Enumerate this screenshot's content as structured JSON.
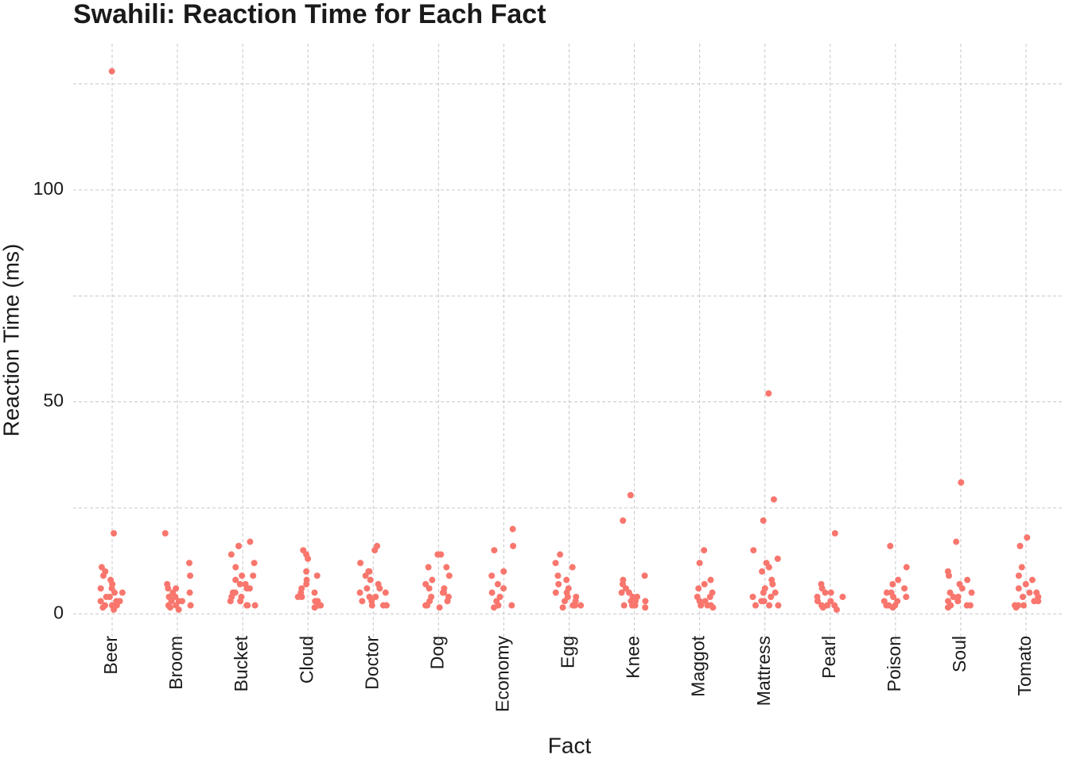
{
  "chart_data": {
    "type": "strip",
    "title": "Swahili: Reaction Time for Each Fact",
    "x_label": "Fact",
    "y_label": "Reaction Time (ms)",
    "categories": [
      "Beer",
      "Broom",
      "Bucket",
      "Cloud",
      "Doctor",
      "Dog",
      "Economy",
      "Egg",
      "Knee",
      "Maggot",
      "Mattress",
      "Pearl",
      "Poison",
      "Soul",
      "Tomato"
    ],
    "values": [
      [
        128,
        19,
        11,
        10,
        8,
        7,
        6,
        5,
        5,
        4,
        4,
        3,
        3,
        3,
        2,
        2,
        2,
        1.5,
        1,
        6,
        9
      ],
      [
        19,
        12,
        9,
        7,
        6,
        5,
        4,
        4,
        3,
        3,
        3,
        2,
        2,
        2,
        1.5,
        1,
        5,
        6
      ],
      [
        17,
        16,
        16,
        14,
        12,
        11,
        9,
        9,
        8,
        7,
        7,
        6,
        6,
        5,
        5,
        4,
        4,
        3,
        3,
        2,
        2,
        2
      ],
      [
        15,
        14,
        13,
        10,
        9,
        8,
        7,
        6,
        5,
        5,
        4,
        4,
        3,
        3,
        2,
        2,
        2,
        1.5
      ],
      [
        16,
        15,
        12,
        10,
        10,
        9,
        8,
        7,
        6,
        6,
        5,
        5,
        4,
        4,
        3,
        3,
        2,
        2,
        2
      ],
      [
        14,
        14,
        11,
        11,
        9,
        8,
        7,
        6,
        6,
        5,
        5,
        4,
        4,
        3,
        3,
        2,
        2,
        2,
        1.5
      ],
      [
        20,
        16,
        15,
        10,
        9,
        7,
        6,
        5,
        4,
        3,
        2,
        2,
        1.5
      ],
      [
        14,
        12,
        11,
        9,
        8,
        7,
        6,
        5,
        5,
        4,
        4,
        3,
        3,
        2,
        2,
        2,
        1.5
      ],
      [
        28,
        22,
        9,
        8,
        7,
        6,
        5,
        5,
        4,
        4,
        3,
        3,
        3,
        2,
        2,
        2,
        1.5
      ],
      [
        15,
        12,
        8,
        7,
        6,
        5,
        4,
        4,
        3,
        3,
        2,
        2,
        2,
        1.5
      ],
      [
        52,
        27,
        22,
        15,
        13,
        12,
        11,
        10,
        8,
        7,
        6,
        5,
        5,
        4,
        4,
        3,
        3,
        2,
        2,
        2
      ],
      [
        19,
        7,
        6,
        5,
        5,
        4,
        4,
        3,
        3,
        2,
        2,
        2,
        1.5,
        1
      ],
      [
        16,
        11,
        8,
        7,
        6,
        5,
        5,
        4,
        4,
        3,
        3,
        2,
        2,
        2,
        1.5
      ],
      [
        31,
        17,
        10,
        9,
        8,
        7,
        6,
        5,
        5,
        4,
        4,
        3,
        3,
        2,
        2,
        2,
        1.5
      ],
      [
        18,
        16,
        11,
        9,
        8,
        7,
        6,
        5,
        5,
        4,
        4,
        3,
        3,
        2,
        2,
        2,
        1.5
      ]
    ],
    "color": "#f8766d",
    "ylim": [
      -3.5,
      134.5
    ],
    "yticks": [
      0,
      50,
      100
    ],
    "yminorticks": [
      25,
      75,
      125
    ],
    "grid": true
  }
}
